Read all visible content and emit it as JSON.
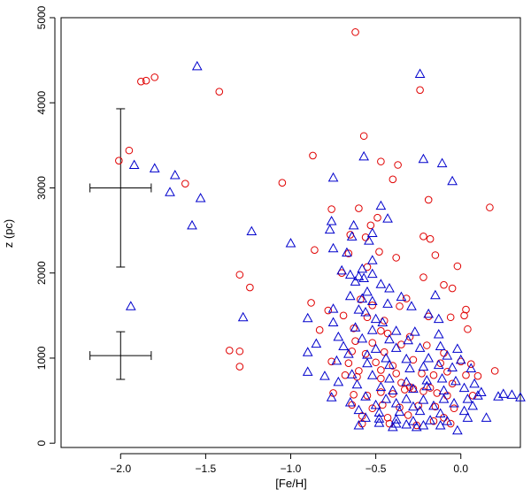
{
  "chart_data": {
    "type": "scatter",
    "title": "",
    "xlabel": "[Fe/H]",
    "ylabel": "z (pc)",
    "xlim": [
      -2.35,
      0.35
    ],
    "ylim": [
      -50,
      5000
    ],
    "x_ticks": [
      -2.0,
      -1.5,
      -1.0,
      -0.5,
      0.0
    ],
    "x_tick_labels": [
      "−2.0",
      "−1.5",
      "−1.0",
      "−0.5",
      "0.0"
    ],
    "y_ticks": [
      0,
      1000,
      2000,
      3000,
      4000,
      5000
    ],
    "y_tick_labels": [
      "0",
      "1000",
      "2000",
      "3000",
      "4000",
      "5000"
    ],
    "grid": false,
    "legend": "none",
    "colors": {
      "circles": "#e00000",
      "triangles": "#0000cc",
      "axes": "#000000"
    },
    "error_bars": [
      {
        "x": -2.0,
        "y": 3000,
        "xerr": 0.18,
        "yerr": 930
      },
      {
        "x": -2.0,
        "y": 1030,
        "xerr": 0.18,
        "yerr": 280
      }
    ],
    "series": [
      {
        "marker": "circle",
        "color": "#e00000",
        "points": [
          [
            -0.62,
            4830
          ],
          [
            -1.8,
            4300
          ],
          [
            -1.85,
            4260
          ],
          [
            -1.88,
            4250
          ],
          [
            -1.42,
            4130
          ],
          [
            -0.24,
            4150
          ],
          [
            -1.95,
            3440
          ],
          [
            -2.01,
            3320
          ],
          [
            -0.57,
            3610
          ],
          [
            -0.87,
            3380
          ],
          [
            -0.37,
            3270
          ],
          [
            -0.47,
            3310
          ],
          [
            -0.4,
            3100
          ],
          [
            -1.05,
            3060
          ],
          [
            -1.62,
            3050
          ],
          [
            -0.6,
            2760
          ],
          [
            -0.76,
            2750
          ],
          [
            -0.49,
            2650
          ],
          [
            -0.19,
            2860
          ],
          [
            0.17,
            2770
          ],
          [
            -0.53,
            2560
          ],
          [
            -0.65,
            2450
          ],
          [
            -0.56,
            2420
          ],
          [
            -0.22,
            2430
          ],
          [
            -0.18,
            2400
          ],
          [
            -0.86,
            2270
          ],
          [
            -0.48,
            2250
          ],
          [
            -0.38,
            2180
          ],
          [
            -0.15,
            2210
          ],
          [
            -1.3,
            1980
          ],
          [
            -0.66,
            2230
          ],
          [
            -0.55,
            2070
          ],
          [
            -0.02,
            2080
          ],
          [
            -1.24,
            1830
          ],
          [
            -0.7,
            2000
          ],
          [
            -0.22,
            1950
          ],
          [
            -0.1,
            1860
          ],
          [
            -0.05,
            1820
          ],
          [
            -0.88,
            1650
          ],
          [
            -0.59,
            1690
          ],
          [
            -0.52,
            1620
          ],
          [
            -0.36,
            1610
          ],
          [
            -0.32,
            1700
          ],
          [
            0.03,
            1570
          ],
          [
            -0.78,
            1560
          ],
          [
            -0.69,
            1500
          ],
          [
            -0.55,
            1480
          ],
          [
            -0.45,
            1440
          ],
          [
            -0.19,
            1490
          ],
          [
            -0.06,
            1480
          ],
          [
            0.02,
            1500
          ],
          [
            0.04,
            1340
          ],
          [
            -0.83,
            1330
          ],
          [
            -0.63,
            1350
          ],
          [
            -0.47,
            1320
          ],
          [
            -0.43,
            1290
          ],
          [
            -0.3,
            1250
          ],
          [
            -0.62,
            1200
          ],
          [
            -0.52,
            1180
          ],
          [
            -0.35,
            1160
          ],
          [
            -0.2,
            1150
          ],
          [
            -1.36,
            1090
          ],
          [
            -1.3,
            1080
          ],
          [
            -0.64,
            1080
          ],
          [
            -0.56,
            1050
          ],
          [
            -0.45,
            1070
          ],
          [
            -0.1,
            1060
          ],
          [
            -1.3,
            900
          ],
          [
            -0.76,
            960
          ],
          [
            -0.66,
            940
          ],
          [
            -0.5,
            950
          ],
          [
            -0.4,
            910
          ],
          [
            -0.28,
            980
          ],
          [
            -0.12,
            940
          ],
          [
            0.0,
            960
          ],
          [
            0.06,
            930
          ],
          [
            -0.6,
            850
          ],
          [
            -0.47,
            860
          ],
          [
            -0.38,
            820
          ],
          [
            -0.23,
            820
          ],
          [
            -0.16,
            800
          ],
          [
            -0.08,
            840
          ],
          [
            0.03,
            800
          ],
          [
            0.1,
            790
          ],
          [
            0.2,
            850
          ],
          [
            -0.68,
            800
          ],
          [
            -0.61,
            780
          ],
          [
            -0.47,
            760
          ],
          [
            -0.35,
            710
          ],
          [
            -0.3,
            660
          ],
          [
            -0.28,
            640
          ],
          [
            -0.18,
            650
          ],
          [
            -0.05,
            700
          ],
          [
            -0.75,
            590
          ],
          [
            -0.63,
            570
          ],
          [
            -0.55,
            560
          ],
          [
            -0.47,
            600
          ],
          [
            -0.4,
            580
          ],
          [
            -0.33,
            630
          ],
          [
            -0.22,
            610
          ],
          [
            -0.14,
            590
          ],
          [
            -0.08,
            560
          ],
          [
            0.07,
            560
          ],
          [
            -0.64,
            450
          ],
          [
            -0.52,
            410
          ],
          [
            -0.46,
            450
          ],
          [
            -0.36,
            420
          ],
          [
            -0.25,
            440
          ],
          [
            -0.15,
            430
          ],
          [
            -0.04,
            410
          ],
          [
            -0.58,
            320
          ],
          [
            -0.43,
            300
          ],
          [
            -0.31,
            330
          ],
          [
            -0.1,
            300
          ],
          [
            -0.42,
            230
          ],
          [
            -0.26,
            210
          ],
          [
            -0.06,
            230
          ],
          [
            -0.58,
            230
          ],
          [
            -0.16,
            260
          ]
        ]
      },
      {
        "marker": "triangle",
        "color": "#0000cc",
        "points": [
          [
            -1.55,
            4430
          ],
          [
            -0.24,
            4340
          ],
          [
            -1.92,
            3270
          ],
          [
            -1.8,
            3230
          ],
          [
            -1.68,
            3150
          ],
          [
            -1.71,
            2950
          ],
          [
            -1.53,
            2880
          ],
          [
            -0.22,
            3340
          ],
          [
            -0.57,
            3370
          ],
          [
            -0.11,
            3290
          ],
          [
            -0.05,
            3080
          ],
          [
            -0.75,
            3120
          ],
          [
            -0.47,
            2790
          ],
          [
            -1.58,
            2560
          ],
          [
            -1.23,
            2490
          ],
          [
            -0.43,
            2640
          ],
          [
            -0.76,
            2610
          ],
          [
            -0.63,
            2560
          ],
          [
            -0.52,
            2470
          ],
          [
            -0.77,
            2510
          ],
          [
            -0.64,
            2430
          ],
          [
            -0.54,
            2380
          ],
          [
            -1.0,
            2350
          ],
          [
            -0.75,
            2290
          ],
          [
            -0.67,
            2240
          ],
          [
            -0.52,
            2150
          ],
          [
            -0.58,
            2050
          ],
          [
            -0.7,
            2030
          ],
          [
            -0.65,
            1980
          ],
          [
            -0.6,
            1960
          ],
          [
            -0.57,
            1940
          ],
          [
            -0.52,
            1990
          ],
          [
            -0.62,
            1900
          ],
          [
            -0.47,
            1870
          ],
          [
            -0.42,
            1820
          ],
          [
            -0.55,
            1780
          ],
          [
            -0.65,
            1730
          ],
          [
            -0.58,
            1700
          ],
          [
            -0.35,
            1720
          ],
          [
            -0.15,
            1740
          ],
          [
            -0.52,
            1670
          ],
          [
            -0.43,
            1640
          ],
          [
            -0.29,
            1610
          ],
          [
            -1.94,
            1610
          ],
          [
            -0.75,
            1580
          ],
          [
            -0.6,
            1570
          ],
          [
            -0.56,
            1540
          ],
          [
            -0.19,
            1520
          ],
          [
            -0.9,
            1470
          ],
          [
            -1.28,
            1480
          ],
          [
            -0.75,
            1420
          ],
          [
            -0.5,
            1460
          ],
          [
            -0.46,
            1420
          ],
          [
            -0.13,
            1460
          ],
          [
            -0.62,
            1360
          ],
          [
            -0.52,
            1330
          ],
          [
            -0.38,
            1320
          ],
          [
            -0.27,
            1310
          ],
          [
            -0.13,
            1280
          ],
          [
            -0.72,
            1250
          ],
          [
            -0.58,
            1230
          ],
          [
            -0.42,
            1220
          ],
          [
            -0.31,
            1210
          ],
          [
            -0.85,
            1170
          ],
          [
            -0.69,
            1140
          ],
          [
            -0.5,
            1110
          ],
          [
            -0.38,
            1120
          ],
          [
            -0.24,
            1120
          ],
          [
            -0.12,
            1140
          ],
          [
            -0.02,
            1110
          ],
          [
            -0.9,
            1070
          ],
          [
            -0.66,
            1050
          ],
          [
            -0.55,
            1040
          ],
          [
            -0.44,
            1000
          ],
          [
            -0.32,
            990
          ],
          [
            -0.19,
            1000
          ],
          [
            -0.08,
            1030
          ],
          [
            0.0,
            980
          ],
          [
            -0.73,
            970
          ],
          [
            -0.55,
            940
          ],
          [
            -0.42,
            920
          ],
          [
            -0.3,
            880
          ],
          [
            -0.22,
            900
          ],
          [
            -0.13,
            920
          ],
          [
            -0.05,
            890
          ],
          [
            0.06,
            880
          ],
          [
            -0.9,
            840
          ],
          [
            -0.8,
            790
          ],
          [
            -0.64,
            810
          ],
          [
            -0.52,
            800
          ],
          [
            -0.42,
            760
          ],
          [
            -0.32,
            720
          ],
          [
            -0.2,
            740
          ],
          [
            -0.11,
            760
          ],
          [
            -0.03,
            730
          ],
          [
            0.08,
            700
          ],
          [
            -0.72,
            720
          ],
          [
            -0.61,
            690
          ],
          [
            -0.47,
            660
          ],
          [
            -0.4,
            620
          ],
          [
            -0.28,
            640
          ],
          [
            -0.2,
            670
          ],
          [
            -0.1,
            620
          ],
          [
            0.02,
            650
          ],
          [
            0.12,
            600
          ],
          [
            0.25,
            580
          ],
          [
            0.22,
            550
          ],
          [
            0.3,
            570
          ],
          [
            0.35,
            540
          ],
          [
            -0.76,
            540
          ],
          [
            -0.56,
            550
          ],
          [
            -0.44,
            520
          ],
          [
            -0.32,
            520
          ],
          [
            -0.22,
            510
          ],
          [
            -0.1,
            520
          ],
          [
            0.04,
            520
          ],
          [
            0.1,
            560
          ],
          [
            -0.65,
            480
          ],
          [
            -0.5,
            450
          ],
          [
            -0.38,
            470
          ],
          [
            -0.28,
            430
          ],
          [
            -0.16,
            440
          ],
          [
            -0.04,
            470
          ],
          [
            0.07,
            440
          ],
          [
            -0.6,
            390
          ],
          [
            -0.48,
            360
          ],
          [
            -0.36,
            370
          ],
          [
            -0.24,
            380
          ],
          [
            -0.12,
            350
          ],
          [
            0.02,
            380
          ],
          [
            -0.56,
            300
          ],
          [
            -0.48,
            290
          ],
          [
            -0.38,
            280
          ],
          [
            -0.28,
            260
          ],
          [
            -0.18,
            270
          ],
          [
            -0.08,
            260
          ],
          [
            0.04,
            300
          ],
          [
            -0.48,
            240
          ],
          [
            -0.38,
            230
          ],
          [
            -0.22,
            210
          ],
          [
            -0.12,
            210
          ],
          [
            -0.6,
            210
          ],
          [
            -0.32,
            220
          ],
          [
            -0.02,
            150
          ],
          [
            0.15,
            300
          ],
          [
            -0.4,
            190
          ],
          [
            -0.26,
            190
          ]
        ]
      }
    ]
  }
}
